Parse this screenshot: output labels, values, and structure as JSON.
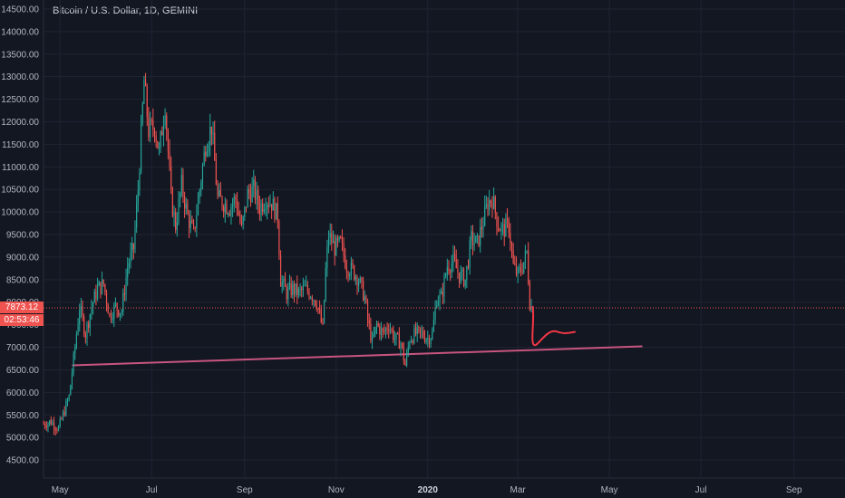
{
  "header": {
    "title": "Bitcoin / U.S. Dollar, 1D, GEMINI"
  },
  "price_badge": {
    "price": "7873.12",
    "countdown": "02:53:46"
  },
  "colors": {
    "up": "#26a69a",
    "down": "#ef5350",
    "trendline": "#c8557f",
    "drawing": "#f23645",
    "price_line": "#ef5350",
    "background": "#131722",
    "grid": "#1f2433"
  },
  "chart_data": {
    "type": "candlestick",
    "title": "Bitcoin / U.S. Dollar, 1D, GEMINI",
    "ylim": [
      4100,
      14700
    ],
    "y_ticks": [
      "14500.00",
      "14000.00",
      "13500.00",
      "13000.00",
      "12500.00",
      "12000.00",
      "11500.00",
      "11000.00",
      "10500.00",
      "10000.00",
      "9500.00",
      "9000.00",
      "8500.00",
      "8000.00",
      "7500.00",
      "7000.00",
      "6500.00",
      "6000.00",
      "5500.00",
      "5000.00",
      "4500.00"
    ],
    "x_ticks": [
      {
        "label": "May",
        "date": "2019-05-01",
        "bold": false
      },
      {
        "label": "Jul",
        "date": "2019-07-01",
        "bold": false
      },
      {
        "label": "Sep",
        "date": "2019-09-01",
        "bold": false
      },
      {
        "label": "Nov",
        "date": "2019-11-01",
        "bold": false
      },
      {
        "label": "2020",
        "date": "2020-01-01",
        "bold": true
      },
      {
        "label": "Mar",
        "date": "2020-03-01",
        "bold": false
      },
      {
        "label": "May",
        "date": "2020-05-01",
        "bold": false
      },
      {
        "label": "Jul",
        "date": "2020-07-01",
        "bold": false
      },
      {
        "label": "Sep",
        "date": "2020-09-01",
        "bold": false
      }
    ],
    "close_series": [
      [
        "2019-04-20",
        5300
      ],
      [
        "2019-04-25",
        5350
      ],
      [
        "2019-04-30",
        5200
      ],
      [
        "2019-05-03",
        5500
      ],
      [
        "2019-05-07",
        5900
      ],
      [
        "2019-05-11",
        7000
      ],
      [
        "2019-05-14",
        7900
      ],
      [
        "2019-05-18",
        7300
      ],
      [
        "2019-05-22",
        7900
      ],
      [
        "2019-05-26",
        8300
      ],
      [
        "2019-05-30",
        8400
      ],
      [
        "2019-06-03",
        7700
      ],
      [
        "2019-06-07",
        7900
      ],
      [
        "2019-06-11",
        7800
      ],
      [
        "2019-06-15",
        8800
      ],
      [
        "2019-06-19",
        9200
      ],
      [
        "2019-06-22",
        10500
      ],
      [
        "2019-06-26",
        12900
      ],
      [
        "2019-06-29",
        11800
      ],
      [
        "2019-07-03",
        11900
      ],
      [
        "2019-07-06",
        11300
      ],
      [
        "2019-07-10",
        12400
      ],
      [
        "2019-07-14",
        10300
      ],
      [
        "2019-07-17",
        9700
      ],
      [
        "2019-07-21",
        10600
      ],
      [
        "2019-07-25",
        9900
      ],
      [
        "2019-07-29",
        9500
      ],
      [
        "2019-08-02",
        10500
      ],
      [
        "2019-08-06",
        11500
      ],
      [
        "2019-08-10",
        11900
      ],
      [
        "2019-08-14",
        10300
      ],
      [
        "2019-08-18",
        10200
      ],
      [
        "2019-08-22",
        10100
      ],
      [
        "2019-08-26",
        10300
      ],
      [
        "2019-08-30",
        9600
      ],
      [
        "2019-09-03",
        10400
      ],
      [
        "2019-09-07",
        10500
      ],
      [
        "2019-09-11",
        10100
      ],
      [
        "2019-09-15",
        10300
      ],
      [
        "2019-09-19",
        10200
      ],
      [
        "2019-09-23",
        9900
      ],
      [
        "2019-09-25",
        8500
      ],
      [
        "2019-09-29",
        8200
      ],
      [
        "2019-10-03",
        8300
      ],
      [
        "2019-10-07",
        8200
      ],
      [
        "2019-10-11",
        8300
      ],
      [
        "2019-10-15",
        8200
      ],
      [
        "2019-10-19",
        8000
      ],
      [
        "2019-10-23",
        7400
      ],
      [
        "2019-10-25",
        8700
      ],
      [
        "2019-10-27",
        9500
      ],
      [
        "2019-10-31",
        9200
      ],
      [
        "2019-11-04",
        9300
      ],
      [
        "2019-11-08",
        8800
      ],
      [
        "2019-11-12",
        8700
      ],
      [
        "2019-11-16",
        8500
      ],
      [
        "2019-11-20",
        8100
      ],
      [
        "2019-11-22",
        7600
      ],
      [
        "2019-11-25",
        7100
      ],
      [
        "2019-11-28",
        7500
      ],
      [
        "2019-12-02",
        7300
      ],
      [
        "2019-12-06",
        7500
      ],
      [
        "2019-12-10",
        7200
      ],
      [
        "2019-12-14",
        7100
      ],
      [
        "2019-12-17",
        6600
      ],
      [
        "2019-12-20",
        7200
      ],
      [
        "2019-12-24",
        7300
      ],
      [
        "2019-12-28",
        7300
      ],
      [
        "2020-01-01",
        7200
      ],
      [
        "2020-01-04",
        7300
      ],
      [
        "2020-01-07",
        8100
      ],
      [
        "2020-01-10",
        8100
      ],
      [
        "2020-01-14",
        8800
      ],
      [
        "2020-01-18",
        8900
      ],
      [
        "2020-01-22",
        8600
      ],
      [
        "2020-01-26",
        8500
      ],
      [
        "2020-01-30",
        9400
      ],
      [
        "2020-02-03",
        9300
      ],
      [
        "2020-02-07",
        9800
      ],
      [
        "2020-02-10",
        10200
      ],
      [
        "2020-02-13",
        10300
      ],
      [
        "2020-02-17",
        9700
      ],
      [
        "2020-02-20",
        9600
      ],
      [
        "2020-02-24",
        9700
      ],
      [
        "2020-02-27",
        8800
      ],
      [
        "2020-03-01",
        8600
      ],
      [
        "2020-03-04",
        8800
      ],
      [
        "2020-03-07",
        9100
      ],
      [
        "2020-03-09",
        8000
      ],
      [
        "2020-03-10",
        7873.12
      ]
    ],
    "trendline": {
      "start": [
        "2019-05-09",
        6600
      ],
      "end": [
        "2020-05-23",
        7020
      ]
    },
    "last_price": 7873.12
  }
}
